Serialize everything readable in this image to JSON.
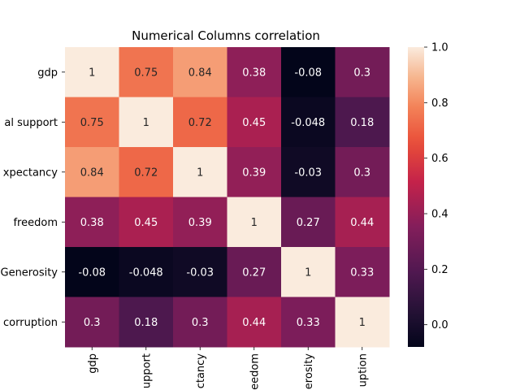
{
  "chart_data": {
    "type": "heatmap",
    "title": "Numerical Columns correlation",
    "row_tick_labels": [
      "gdp",
      "al support",
      "xpectancy",
      "freedom",
      "Generosity",
      "corruption"
    ],
    "col_tick_labels": [
      "gdp",
      "upport",
      "ctancy",
      "eedom",
      "erosity",
      "uption"
    ],
    "values": [
      [
        1,
        0.75,
        0.84,
        0.38,
        -0.08,
        0.3
      ],
      [
        0.75,
        1,
        0.72,
        0.45,
        -0.048,
        0.18
      ],
      [
        0.84,
        0.72,
        1,
        0.39,
        -0.03,
        0.3
      ],
      [
        0.38,
        0.45,
        0.39,
        1,
        0.27,
        0.44
      ],
      [
        -0.08,
        -0.048,
        -0.03,
        0.27,
        1,
        0.33
      ],
      [
        0.3,
        0.18,
        0.3,
        0.44,
        0.33,
        1
      ]
    ],
    "cell_labels": [
      [
        "1",
        "0.75",
        "0.84",
        "0.38",
        "-0.08",
        "0.3"
      ],
      [
        "0.75",
        "1",
        "0.72",
        "0.45",
        "-0.048",
        "0.18"
      ],
      [
        "0.84",
        "0.72",
        "1",
        "0.39",
        "-0.03",
        "0.3"
      ],
      [
        "0.38",
        "0.45",
        "0.39",
        "1",
        "0.27",
        "0.44"
      ],
      [
        "-0.08",
        "-0.048",
        "-0.03",
        "0.27",
        "1",
        "0.33"
      ],
      [
        "0.3",
        "0.18",
        "0.3",
        "0.44",
        "0.33",
        "1"
      ]
    ],
    "colorbar": {
      "min": -0.08,
      "max": 1.0,
      "ticks": [
        0.0,
        0.2,
        0.4,
        0.6,
        0.8,
        1.0
      ],
      "tick_labels": [
        "0.0",
        "0.2",
        "0.4",
        "0.6",
        "0.8",
        "1.0"
      ],
      "colormap": "rocket"
    }
  }
}
